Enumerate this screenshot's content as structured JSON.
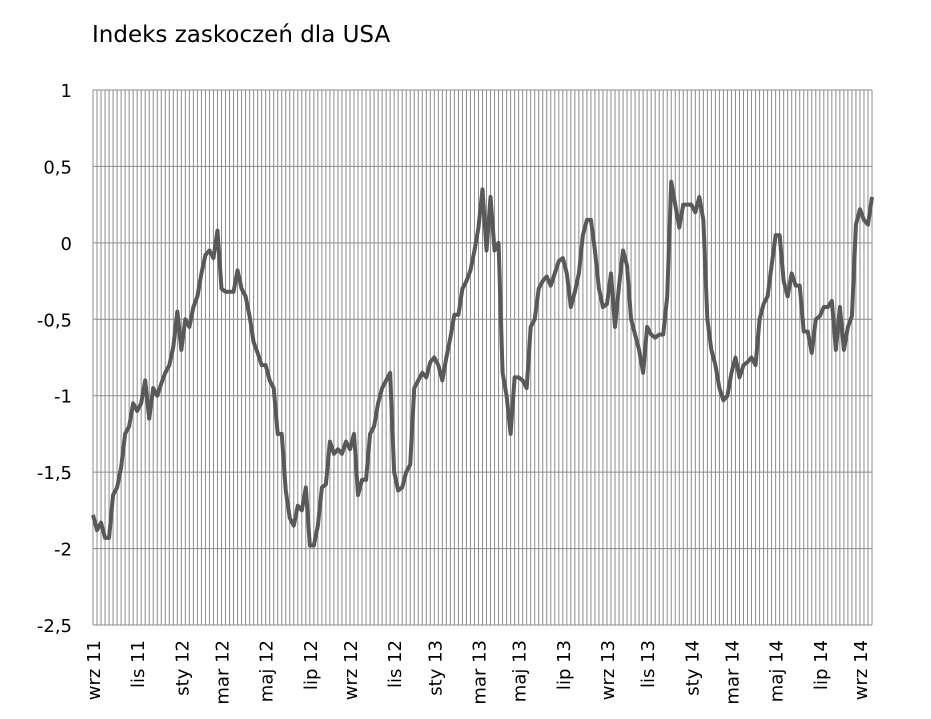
{
  "chart_data": {
    "type": "line",
    "title": "Indeks zaskoczeń dla USA",
    "categories": [
      "wrz 11",
      null,
      null,
      null,
      null,
      null,
      null,
      null,
      null,
      null,
      null,
      "lis 11",
      null,
      null,
      null,
      null,
      null,
      null,
      null,
      null,
      null,
      null,
      "sty 12",
      null,
      null,
      null,
      null,
      null,
      null,
      null,
      null,
      null,
      "mar 12",
      null,
      null,
      null,
      null,
      null,
      null,
      null,
      null,
      null,
      null,
      "maj 12",
      null,
      null,
      null,
      null,
      null,
      null,
      null,
      null,
      null,
      null,
      "lip 12",
      null,
      null,
      null,
      null,
      null,
      null,
      null,
      null,
      null,
      "wrz 12",
      null,
      null,
      null,
      null,
      null,
      null,
      null,
      null,
      null,
      null,
      "lis 12",
      null,
      null,
      null,
      null,
      null,
      null,
      null,
      null,
      null,
      "sty 13",
      null,
      null,
      null,
      null,
      null,
      null,
      null,
      null,
      null,
      null,
      "mar 13",
      null,
      null,
      null,
      null,
      null,
      null,
      null,
      null,
      null,
      "maj 13",
      null,
      null,
      null,
      null,
      null,
      null,
      null,
      null,
      null,
      null,
      "lip 13",
      null,
      null,
      null,
      null,
      null,
      null,
      null,
      null,
      null,
      null,
      "wrz 13",
      null,
      null,
      null,
      null,
      null,
      null,
      null,
      null,
      null,
      "lis 13",
      null,
      null,
      null,
      null,
      null,
      null,
      null,
      null,
      null,
      null,
      "sty 14",
      null,
      null,
      null,
      null,
      null,
      null,
      null,
      null,
      null,
      "mar 14",
      null,
      null,
      null,
      null,
      null,
      null,
      null,
      null,
      null,
      null,
      "maj 14",
      null,
      null,
      null,
      null,
      null,
      null,
      null,
      null,
      null,
      null,
      "lip 14",
      null,
      null,
      null,
      null,
      null,
      null,
      null,
      null,
      null,
      "wrz 14",
      null,
      null,
      null
    ],
    "values": [
      -1.78,
      -1.88,
      -1.83,
      -1.93,
      -1.93,
      -1.65,
      -1.6,
      -1.47,
      -1.25,
      -1.2,
      -1.05,
      -1.1,
      -1.05,
      -0.9,
      -1.15,
      -0.95,
      -1.0,
      -0.92,
      -0.85,
      -0.8,
      -0.68,
      -0.45,
      -0.7,
      -0.5,
      -0.55,
      -0.42,
      -0.35,
      -0.2,
      -0.08,
      -0.05,
      -0.1,
      0.08,
      -0.3,
      -0.32,
      -0.32,
      -0.32,
      -0.18,
      -0.3,
      -0.35,
      -0.48,
      -0.65,
      -0.72,
      -0.8,
      -0.8,
      -0.9,
      -0.95,
      -1.25,
      -1.25,
      -1.62,
      -1.8,
      -1.85,
      -1.72,
      -1.75,
      -1.6,
      -1.98,
      -1.98,
      -1.85,
      -1.6,
      -1.58,
      -1.3,
      -1.38,
      -1.35,
      -1.38,
      -1.3,
      -1.35,
      -1.25,
      -1.65,
      -1.55,
      -1.55,
      -1.25,
      -1.2,
      -1.05,
      -0.95,
      -0.9,
      -0.85,
      -1.5,
      -1.62,
      -1.6,
      -1.5,
      -1.45,
      -0.95,
      -0.9,
      -0.85,
      -0.88,
      -0.78,
      -0.75,
      -0.8,
      -0.9,
      -0.75,
      -0.62,
      -0.47,
      -0.47,
      -0.3,
      -0.25,
      -0.18,
      -0.05,
      0.1,
      0.35,
      -0.05,
      0.3,
      -0.05,
      0.0,
      -0.85,
      -1.0,
      -1.25,
      -0.88,
      -0.88,
      -0.9,
      -0.95,
      -0.55,
      -0.5,
      -0.3,
      -0.25,
      -0.22,
      -0.28,
      -0.2,
      -0.12,
      -0.1,
      -0.2,
      -0.42,
      -0.32,
      -0.2,
      0.05,
      0.15,
      0.15,
      -0.05,
      -0.3,
      -0.42,
      -0.4,
      -0.2,
      -0.55,
      -0.28,
      -0.05,
      -0.15,
      -0.5,
      -0.6,
      -0.7,
      -0.85,
      -0.55,
      -0.6,
      -0.62,
      -0.6,
      -0.6,
      -0.35,
      0.4,
      0.25,
      0.1,
      0.25,
      0.25,
      0.25,
      0.2,
      0.3,
      0.15,
      -0.5,
      -0.7,
      -0.8,
      -0.95,
      -1.03,
      -1.0,
      -0.85,
      -0.75,
      -0.88,
      -0.8,
      -0.78,
      -0.75,
      -0.8,
      -0.5,
      -0.4,
      -0.35,
      -0.15,
      0.05,
      0.05,
      -0.25,
      -0.35,
      -0.2,
      -0.28,
      -0.28,
      -0.58,
      -0.58,
      -0.72,
      -0.5,
      -0.48,
      -0.42,
      -0.42,
      -0.38,
      -0.7,
      -0.42,
      -0.7,
      -0.55,
      -0.48,
      0.12,
      0.22,
      0.15,
      0.12,
      0.3
    ],
    "color": "#595959",
    "ylim": [
      -2.5,
      1
    ],
    "yticks": [
      1,
      {
        "value": 0.5,
        "label": "0,5"
      },
      0,
      {
        "value": -0.5,
        "label": "-0,5"
      },
      -1,
      {
        "value": -1.5,
        "label": "-1,5"
      },
      -2,
      {
        "value": -2.5,
        "label": "-2,5"
      }
    ],
    "grid": true
  }
}
